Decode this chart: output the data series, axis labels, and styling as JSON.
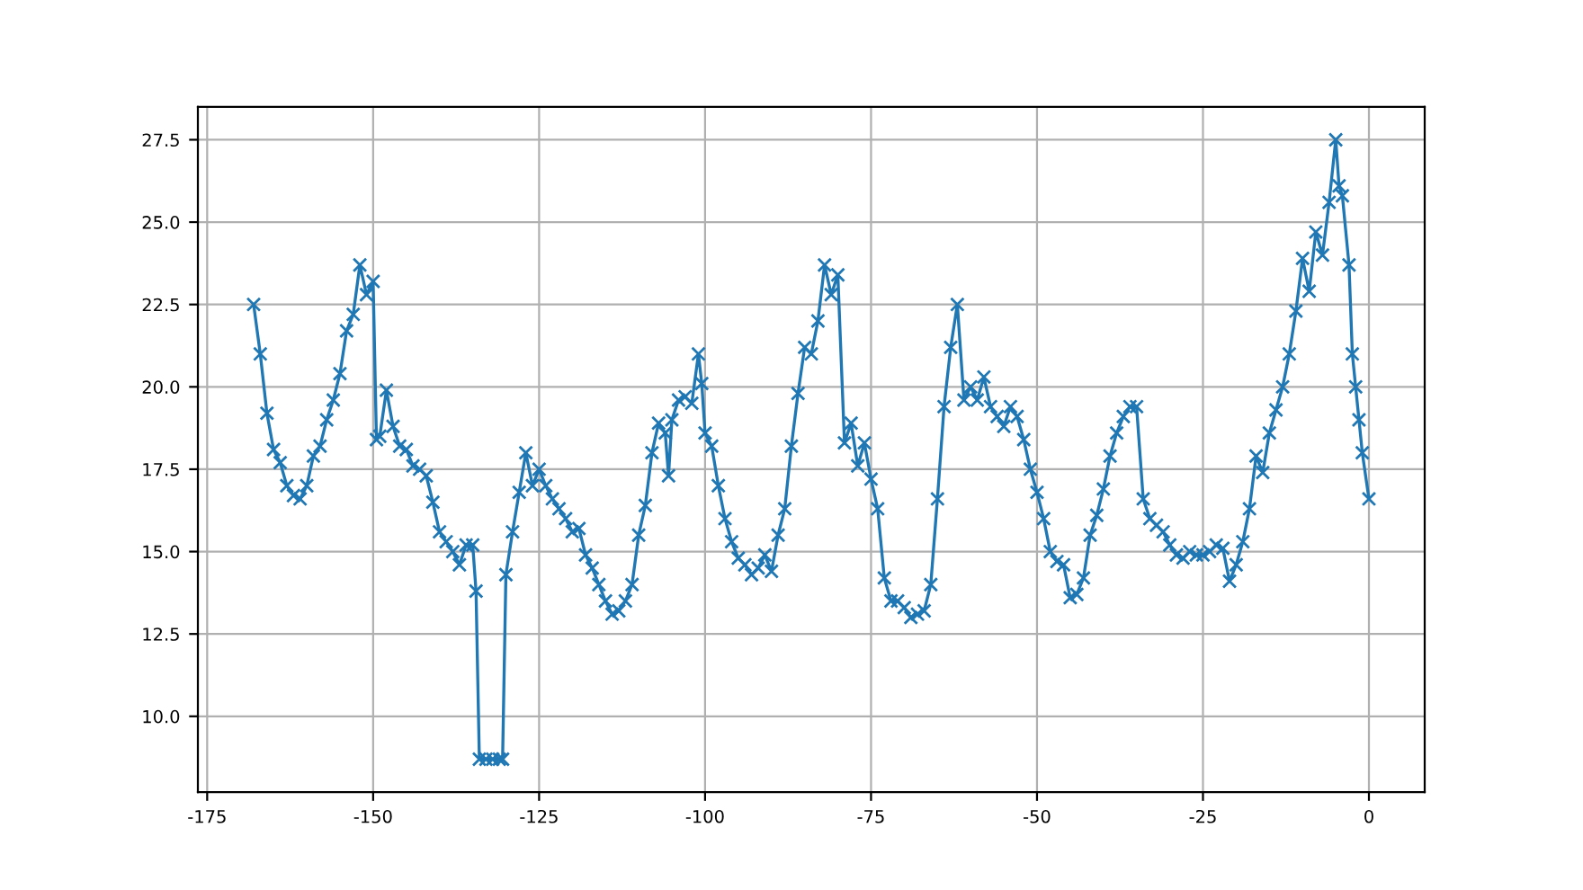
{
  "chart_data": {
    "type": "line",
    "marker": "cross",
    "line_style": "solid",
    "grid": true,
    "xlim": [
      -176.4,
      8.4
    ],
    "ylim": [
      7.7,
      28.5
    ],
    "xticks": [
      -175,
      -150,
      -125,
      -100,
      -75,
      -50,
      -25,
      0
    ],
    "yticks": [
      {
        "value": 10,
        "label": "10.0"
      },
      {
        "value": 12.5,
        "label": "12.5"
      },
      {
        "value": 15,
        "label": "15.0"
      },
      {
        "value": 17.5,
        "label": "17.5"
      },
      {
        "value": 20,
        "label": "20.0"
      },
      {
        "value": 22.5,
        "label": "22.5"
      },
      {
        "value": 25,
        "label": "25.0"
      },
      {
        "value": 27.5,
        "label": "27.5"
      }
    ],
    "series": [
      {
        "color": "#1f77b4",
        "x": [
          -168,
          -167,
          -166,
          -165,
          -164,
          -163,
          -162,
          -161,
          -160,
          -159,
          -158,
          -157,
          -156,
          -155,
          -154,
          -153,
          -152,
          -151,
          -150,
          -149.5,
          -149,
          -148,
          -147,
          -146,
          -145,
          -144,
          -143,
          -142,
          -141,
          -140,
          -139,
          -138,
          -137,
          -136,
          -135,
          -134.5,
          -134,
          -133,
          -132,
          -131,
          -130.5,
          -130,
          -129,
          -128,
          -127,
          -126,
          -125,
          -124,
          -123,
          -122,
          -121,
          -120,
          -119,
          -118,
          -117,
          -116,
          -115,
          -114,
          -113,
          -112,
          -111,
          -110,
          -109,
          -108,
          -107,
          -106,
          -105.5,
          -105,
          -104,
          -103,
          -102,
          -101,
          -100.5,
          -100,
          -99,
          -98,
          -97,
          -96,
          -95,
          -94,
          -93,
          -92,
          -91,
          -90,
          -89,
          -88,
          -87,
          -86,
          -85,
          -84,
          -83,
          -82,
          -81,
          -80,
          -79,
          -78,
          -77,
          -76,
          -75,
          -74,
          -73,
          -72,
          -71,
          -70,
          -69,
          -68,
          -67,
          -66,
          -65,
          -64,
          -63,
          -62,
          -61,
          -60,
          -59,
          -58,
          -57,
          -56,
          -55,
          -54,
          -53,
          -52,
          -51,
          -50,
          -49,
          -48,
          -47,
          -46,
          -45,
          -44,
          -43,
          -42,
          -41,
          -40,
          -39,
          -38,
          -37,
          -36,
          -35,
          -34,
          -33,
          -32,
          -31,
          -30,
          -29,
          -28,
          -27,
          -26,
          -25,
          -24,
          -23,
          -22,
          -21,
          -20,
          -19,
          -18,
          -17,
          -16,
          -15,
          -14,
          -13,
          -12,
          -11,
          -10,
          -9,
          -8,
          -7,
          -6,
          -5,
          -4.5,
          -4,
          -3,
          -2.5,
          -2,
          -1.5,
          -1,
          0
        ],
        "values": [
          22.5,
          21.0,
          19.2,
          18.1,
          17.7,
          17.0,
          16.7,
          16.6,
          17.0,
          17.9,
          18.2,
          19.0,
          19.6,
          20.4,
          21.7,
          22.2,
          23.7,
          22.8,
          23.2,
          18.4,
          18.5,
          19.9,
          18.8,
          18.2,
          18.1,
          17.6,
          17.5,
          17.3,
          16.5,
          15.6,
          15.3,
          15.0,
          14.6,
          15.2,
          15.2,
          13.8,
          8.7,
          8.7,
          8.7,
          8.7,
          8.7,
          14.3,
          15.6,
          16.8,
          18.0,
          17.0,
          17.5,
          17.0,
          16.6,
          16.3,
          16.0,
          15.6,
          15.7,
          14.9,
          14.5,
          14.0,
          13.5,
          13.1,
          13.2,
          13.5,
          14.0,
          15.5,
          16.4,
          18.0,
          18.9,
          18.6,
          17.3,
          19.0,
          19.6,
          19.7,
          19.5,
          21.0,
          20.1,
          18.6,
          18.2,
          17.0,
          16.0,
          15.3,
          14.8,
          14.6,
          14.3,
          14.5,
          14.9,
          14.4,
          15.5,
          16.3,
          18.2,
          19.8,
          21.2,
          21.0,
          22.0,
          23.7,
          22.8,
          23.4,
          18.3,
          18.9,
          17.6,
          18.3,
          17.2,
          16.3,
          14.2,
          13.5,
          13.5,
          13.3,
          13.0,
          13.1,
          13.2,
          14.0,
          16.6,
          19.4,
          21.2,
          22.5,
          19.6,
          20.0,
          19.6,
          20.3,
          19.4,
          19.1,
          18.8,
          19.4,
          19.1,
          18.4,
          17.5,
          16.8,
          16.0,
          15.0,
          14.7,
          14.6,
          13.6,
          13.7,
          14.2,
          15.5,
          16.1,
          16.9,
          17.9,
          18.6,
          19.1,
          19.4,
          19.4,
          16.6,
          16.0,
          15.8,
          15.6,
          15.2,
          14.9,
          14.8,
          15.0,
          14.9,
          14.9,
          15.0,
          15.2,
          15.1,
          14.1,
          14.6,
          15.3,
          16.3,
          17.9,
          17.4,
          18.6,
          19.3,
          20.0,
          21.0,
          22.3,
          23.9,
          22.9,
          24.7,
          24.0,
          25.6,
          27.5,
          26.1,
          25.8,
          23.7,
          21.0,
          20.0,
          19.0,
          18.0,
          16.6
        ]
      }
    ]
  }
}
